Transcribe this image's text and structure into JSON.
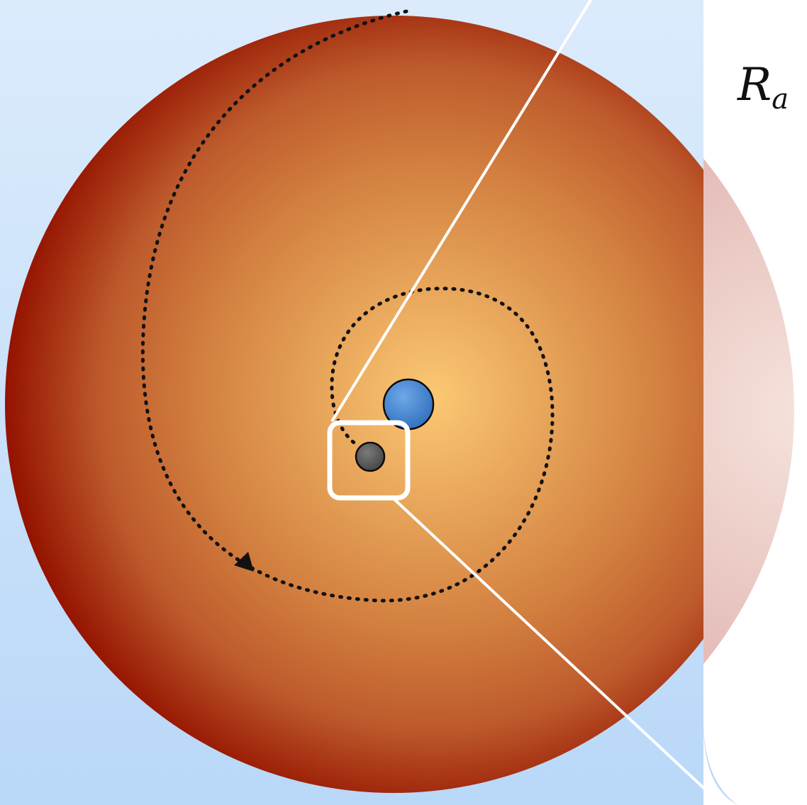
{
  "labels": {
    "radius_symbol": "R",
    "radius_subscript": "a"
  },
  "colors": {
    "background_top": "#dcebfc",
    "background_bottom": "#b9d8f8",
    "envelope_center": "#fbc873",
    "envelope_mid": "#d27f3f",
    "envelope_edge": "#951400",
    "primary_star": "#2f6fbd",
    "companion": "#444444",
    "zoom_line": "#ffffff",
    "orbit_path": "#111111"
  },
  "icons": {
    "primary_star": "blue-star-circle",
    "companion": "dark-companion-circle",
    "orbit_arrow": "arrowhead-icon"
  }
}
